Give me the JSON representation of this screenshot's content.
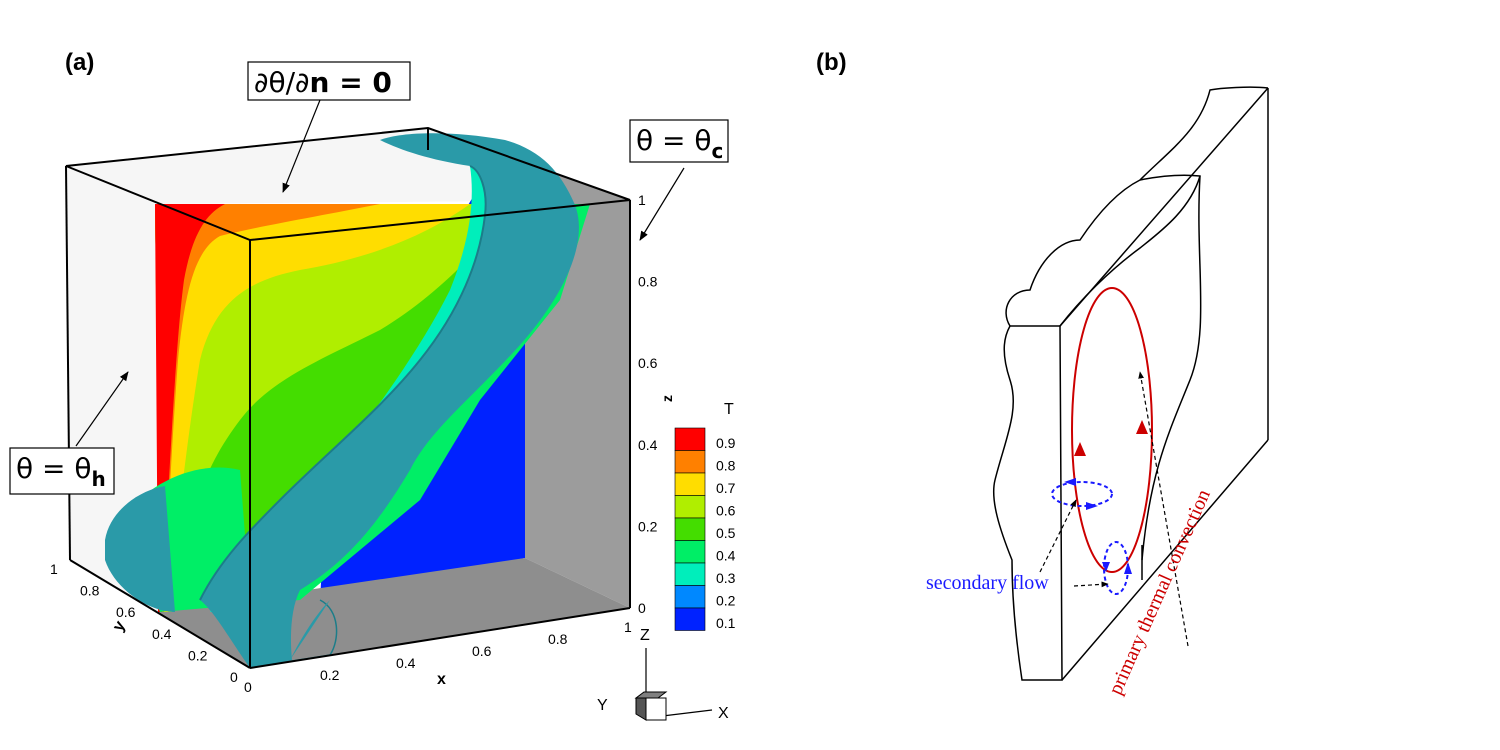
{
  "panel_a": {
    "label": "(a)",
    "annotations": {
      "top": {
        "prefix": "∂θ/∂",
        "bold": "n = 0"
      },
      "cold": {
        "main": "θ = θ",
        "sub": "c"
      },
      "hot": {
        "main": "θ = θ",
        "sub": "h"
      }
    },
    "axes": {
      "x": {
        "label": "x",
        "ticks": [
          "0",
          "0.2",
          "0.4",
          "0.6",
          "0.8",
          "1"
        ]
      },
      "y": {
        "label": "y",
        "ticks": [
          "0",
          "0.2",
          "0.4",
          "0.6",
          "0.8",
          "1"
        ]
      },
      "z": {
        "label": "z",
        "ticks": [
          "0",
          "0.2",
          "0.4",
          "0.6",
          "0.8",
          "1"
        ]
      }
    },
    "legend": {
      "title": "T",
      "levels": [
        {
          "value": "0.9",
          "color": "#ff0000"
        },
        {
          "value": "0.8",
          "color": "#ff8000"
        },
        {
          "value": "0.7",
          "color": "#ffdd00"
        },
        {
          "value": "0.6",
          "color": "#b0ee00"
        },
        {
          "value": "0.5",
          "color": "#44dd00"
        },
        {
          "value": "0.4",
          "color": "#00ee66"
        },
        {
          "value": "0.3",
          "color": "#00eebb"
        },
        {
          "value": "0.2",
          "color": "#0088ff"
        },
        {
          "value": "0.1",
          "color": "#0022ff"
        }
      ]
    },
    "triad": {
      "z": "Z",
      "y": "Y",
      "x": "X"
    },
    "colors": {
      "isosurface": "#2a9aa8",
      "cold_wall": "#0000ff",
      "side_wall": "#9c9c9c",
      "floor": "#8e8e8e",
      "hot_wall": "#f6f6f6"
    }
  },
  "panel_b": {
    "label": "(b)",
    "secondary_flow": "secondary flow",
    "primary_flow": "primary thermal convection",
    "colors": {
      "primary": "#cc0000",
      "secondary": "#1a1aff"
    }
  }
}
